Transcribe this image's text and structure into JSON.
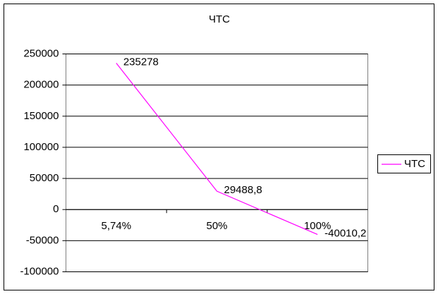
{
  "chart_data": {
    "type": "line",
    "title": "ЧТС",
    "categories": [
      "5,74%",
      "50%",
      "100%"
    ],
    "series": [
      {
        "name": "ЧТС",
        "color": "#ff00ff",
        "values": [
          235278,
          29488.8,
          -40010.2
        ],
        "value_labels": [
          "235278",
          "29488,8",
          "-40010,2"
        ]
      }
    ],
    "ylim": [
      -100000,
      250000
    ],
    "yticks": [
      -100000,
      -50000,
      0,
      50000,
      100000,
      150000,
      200000,
      250000
    ],
    "grid": true,
    "legend": "right"
  }
}
